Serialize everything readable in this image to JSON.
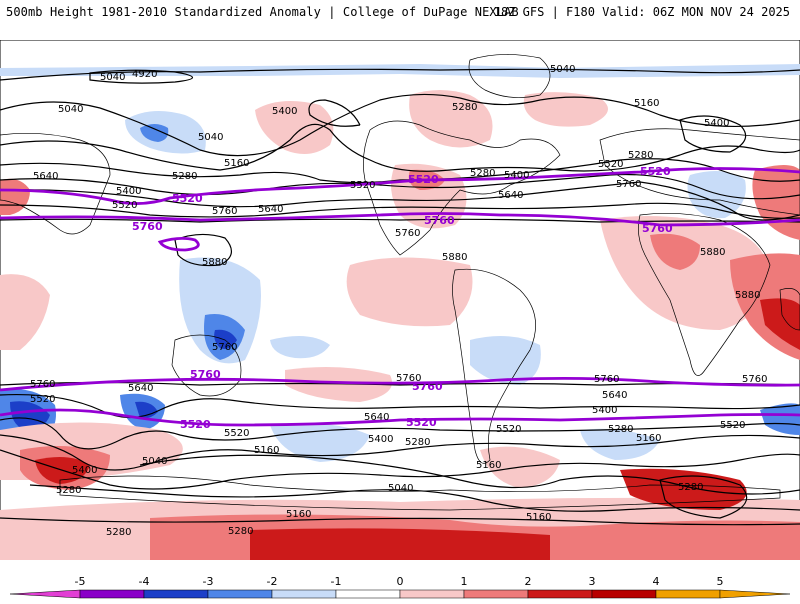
{
  "header": {
    "title_left": "500mb Height 1981-2010 Standardized Anomaly | College of DuPage NEXLAB",
    "title_right": "18Z GFS | F180 Valid: 06Z MON NOV 24 2025"
  },
  "colors": {
    "neg5": "#e23fd4",
    "neg4": "#8a00c8",
    "neg3": "#1c3fc8",
    "neg2": "#4f86e8",
    "neg1": "#c8dcf8",
    "zero": "#ffffff",
    "pos1": "#f8c8c8",
    "pos2": "#ee7a7a",
    "pos3": "#cc1a1a",
    "pos4": "#b80000",
    "pos5": "#f0a000",
    "highlight": "#9400d3"
  },
  "colorbar": {
    "ticks": [
      "-5",
      "-4",
      "-3",
      "-2",
      "-1",
      "0",
      "1",
      "2",
      "3",
      "4",
      "5"
    ]
  },
  "contour_labels": {
    "l4920": "4920",
    "l5040a": "5040",
    "l5040b": "5040",
    "l5040c": "5040",
    "l5040d": "5040",
    "l5040e": "5040",
    "l5040f": "5040",
    "l5160a": "5160",
    "l5160b": "5160",
    "l5160c": "5160",
    "l5160d": "5160",
    "l5160e": "5160",
    "l5160f": "5160",
    "l5160g": "5160",
    "l5280a": "5280",
    "l5280b": "5280",
    "l5280c": "5280",
    "l5280d": "5280",
    "l5280e": "5280",
    "l5280f": "5280",
    "l5280g": "5280",
    "l5280h": "5280",
    "l5280i": "5280",
    "l5280j": "5280",
    "l5400a": "5400",
    "l5400b": "5400",
    "l5400c": "5400",
    "l5400d": "5400",
    "l5400e": "5400",
    "l5400f": "5400",
    "l5400g": "5400",
    "l5520a": "5520",
    "l5520b": "5520",
    "l5520c": "5520",
    "l5520d": "5520",
    "l5520e": "5520",
    "l5520f": "5520",
    "l5520g": "5520",
    "l5640a": "5640",
    "l5640b": "5640",
    "l5640c": "5640",
    "l5640d": "5640",
    "l5640e": "5640",
    "l5640f": "5640",
    "l5760a": "5760",
    "l5760b": "5760",
    "l5760c": "5760",
    "l5760d": "5760",
    "l5760e": "5760",
    "l5760f": "5760",
    "l5760g": "5760",
    "l5760h": "5760",
    "l5880a": "5880",
    "l5880b": "5880",
    "l5880c": "5880",
    "l5880d": "5880"
  },
  "highlight_labels": {
    "h5520a": "5520",
    "h5520b": "5520",
    "h5520c": "5520",
    "h5520d": "5520",
    "h5520e": "5520",
    "h5760a": "5760",
    "h5760b": "5760",
    "h5760c": "5760",
    "h5760d": "5760",
    "h5760e": "5760"
  }
}
